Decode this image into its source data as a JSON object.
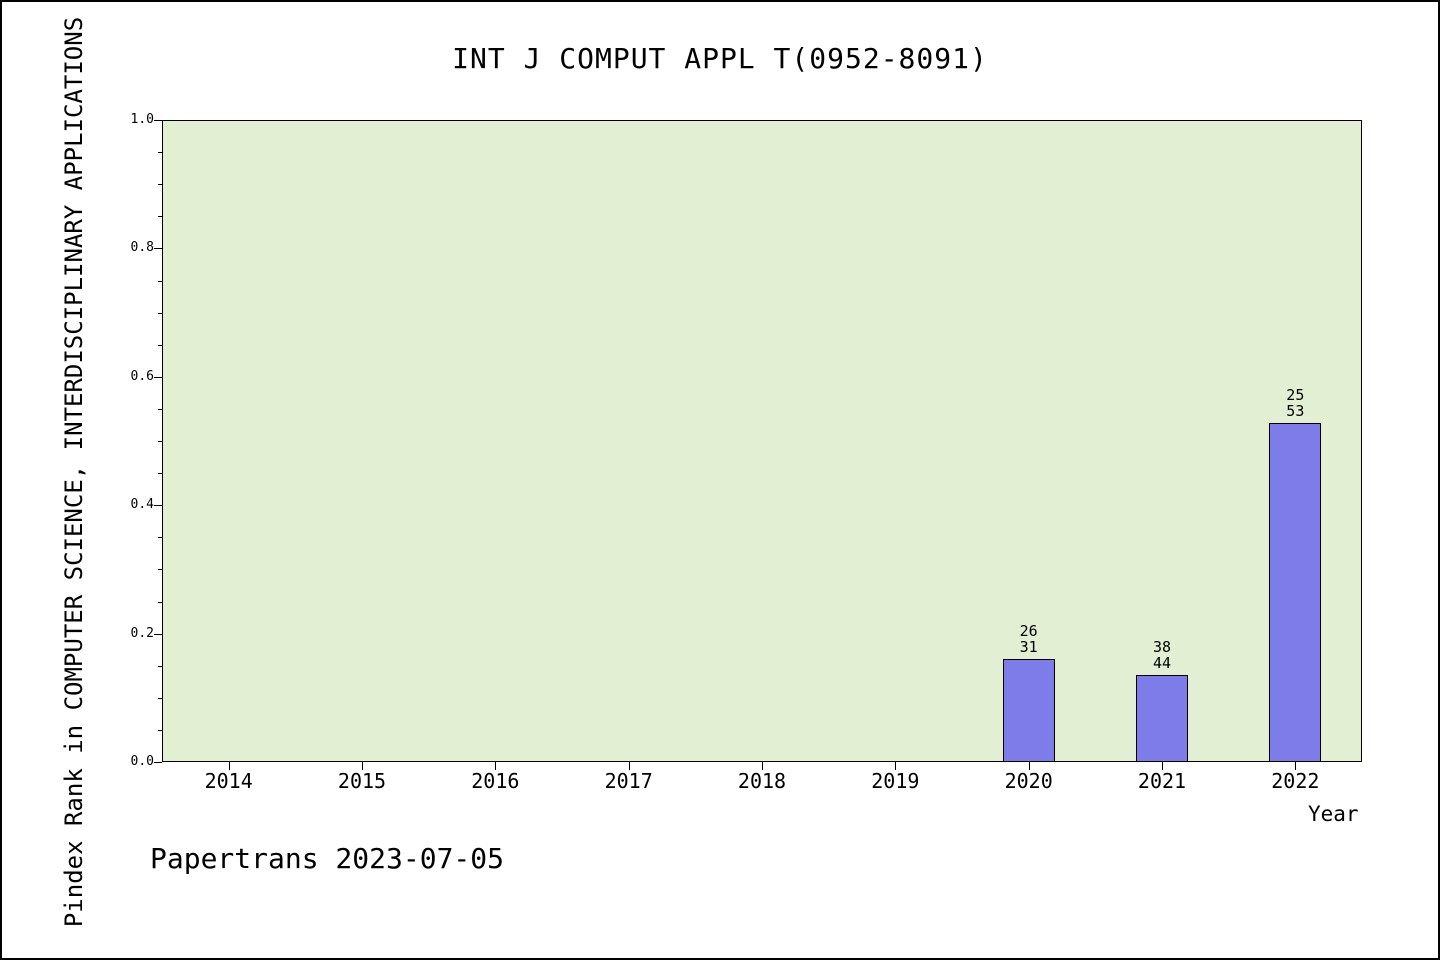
{
  "footer": {
    "text": "Papertrans 2023-07-05"
  },
  "chart_data": {
    "type": "bar",
    "title": "INT J COMPUT APPL T(0952-8091)",
    "xlabel": "Year",
    "ylabel": "Pindex Rank in COMPUTER SCIENCE, INTERDISCIPLINARY APPLICATIONS",
    "categories": [
      "2014",
      "2015",
      "2016",
      "2017",
      "2018",
      "2019",
      "2020",
      "2021",
      "2022"
    ],
    "values": [
      null,
      null,
      null,
      null,
      null,
      null,
      0.161,
      0.136,
      0.528
    ],
    "bar_labels": [
      null,
      null,
      null,
      null,
      null,
      null,
      [
        "26",
        "31"
      ],
      [
        "38",
        "44"
      ],
      [
        "25",
        "53"
      ]
    ],
    "ylim": [
      0,
      1
    ],
    "yticks_major": [
      0.0,
      0.2,
      0.4,
      0.6,
      0.8,
      1.0
    ],
    "ytick_minor_step": 0.05,
    "grid": false,
    "legend": false,
    "colors": {
      "bar_fill": "#7d7ce8",
      "bar_edge": "#000000",
      "plot_bg": "#e2efd2"
    }
  }
}
